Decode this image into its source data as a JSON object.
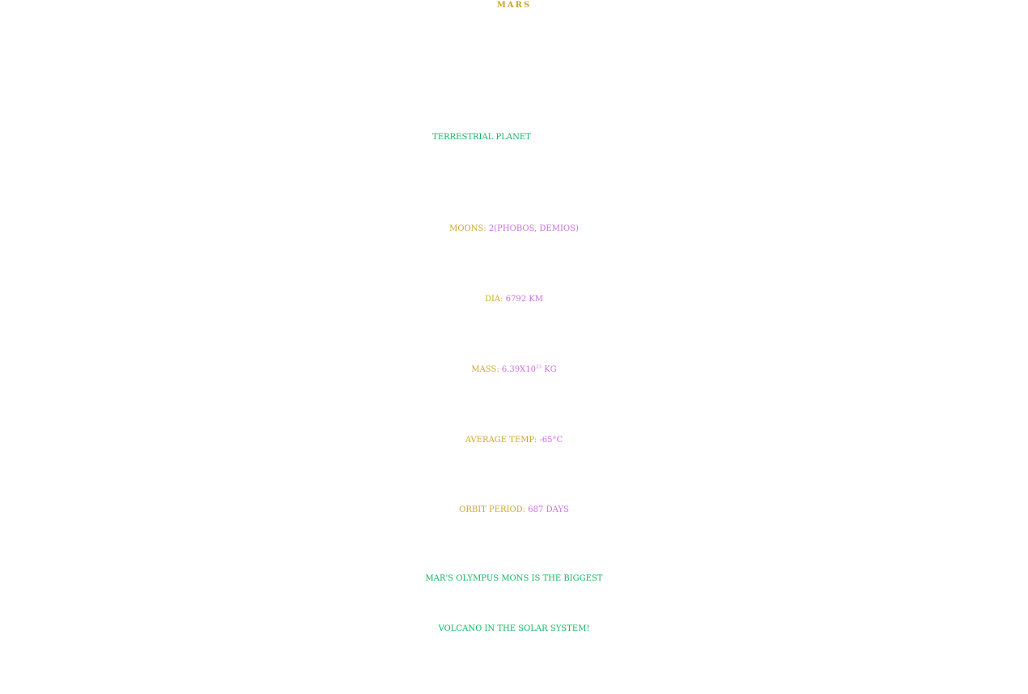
{
  "title": "MARS",
  "subtitle": "TERRESTRIAL PLANET",
  "facts": {
    "moons": {
      "label": "MOONS:",
      "value": "2(PHOBOS, DEMIOS)"
    },
    "dia": {
      "label": "DIA:",
      "value": "6792 KM"
    },
    "mass": {
      "label": "MASS:",
      "base": "6.39X10",
      "exponent": "23",
      "unit": "KG"
    },
    "temp": {
      "label": "AVERAGE TEMP:",
      "value": "-65°C"
    },
    "orbit": {
      "label": "ORBIT PERIOD:",
      "value": "687 DAYS"
    }
  },
  "fun_fact": {
    "line1": "MAR'S OLYMPUS MONS IS THE BIGGEST",
    "line2": "VOLCANO IN THE SOLAR SYSTEM!"
  },
  "colors": {
    "label": "#cca62e",
    "value": "#cc6fdf",
    "accent": "#0dba62",
    "background": "#ffffff"
  }
}
